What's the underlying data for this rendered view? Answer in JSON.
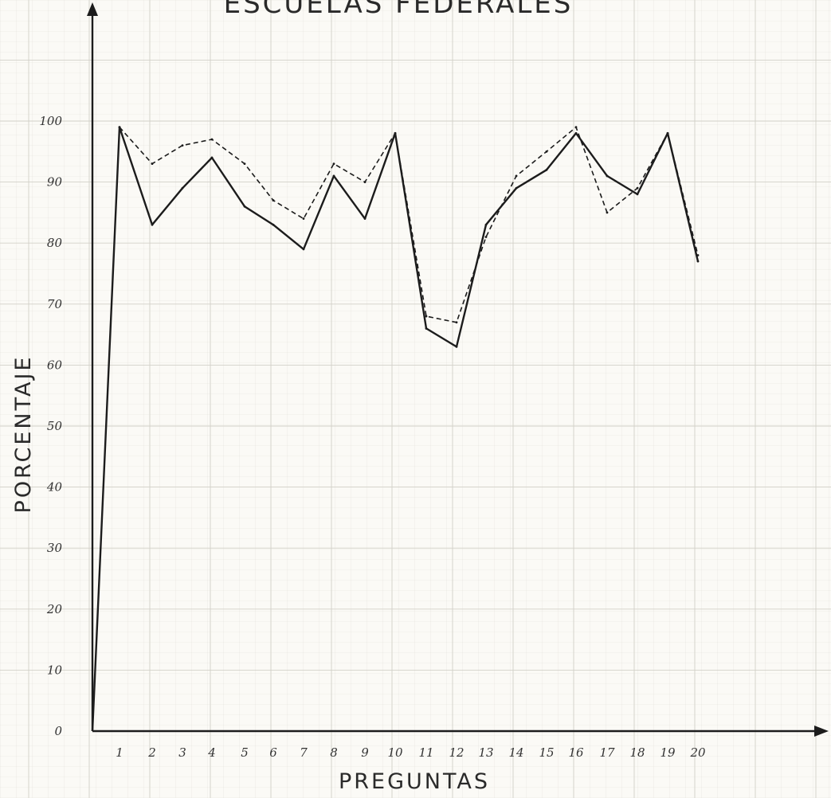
{
  "chart_data": {
    "type": "line",
    "title": "ESCUELAS FEDERALES",
    "xlabel": "PREGUNTAS",
    "ylabel": "PORCENTAJE",
    "x": [
      1,
      2,
      3,
      4,
      5,
      6,
      7,
      8,
      9,
      10,
      11,
      12,
      13,
      14,
      15,
      16,
      17,
      18,
      19,
      20
    ],
    "x_tick_labels": [
      "1",
      "2",
      "3",
      "4",
      "5",
      "6",
      "7",
      "8",
      "9",
      "10",
      "11",
      "12",
      "13",
      "14",
      "15",
      "16",
      "17",
      "18",
      "19",
      "20"
    ],
    "y_tick_labels": [
      "0",
      "10",
      "20",
      "30",
      "40",
      "50",
      "60",
      "70",
      "80",
      "90",
      "100"
    ],
    "ylim": [
      0,
      100
    ],
    "grid": true,
    "series": [
      {
        "style": "solid",
        "color": "#1c1c1c",
        "values": [
          99,
          83,
          89,
          94,
          86,
          83,
          79,
          91,
          84,
          98,
          66,
          63,
          83,
          89,
          92,
          98,
          91,
          88,
          98,
          77
        ]
      },
      {
        "style": "dashed",
        "color": "#1c1c1c",
        "values": [
          99,
          93,
          96,
          97,
          93,
          87,
          84,
          93,
          90,
          98,
          68,
          67,
          81,
          91,
          95,
          99,
          85,
          89,
          98,
          78
        ]
      }
    ]
  }
}
